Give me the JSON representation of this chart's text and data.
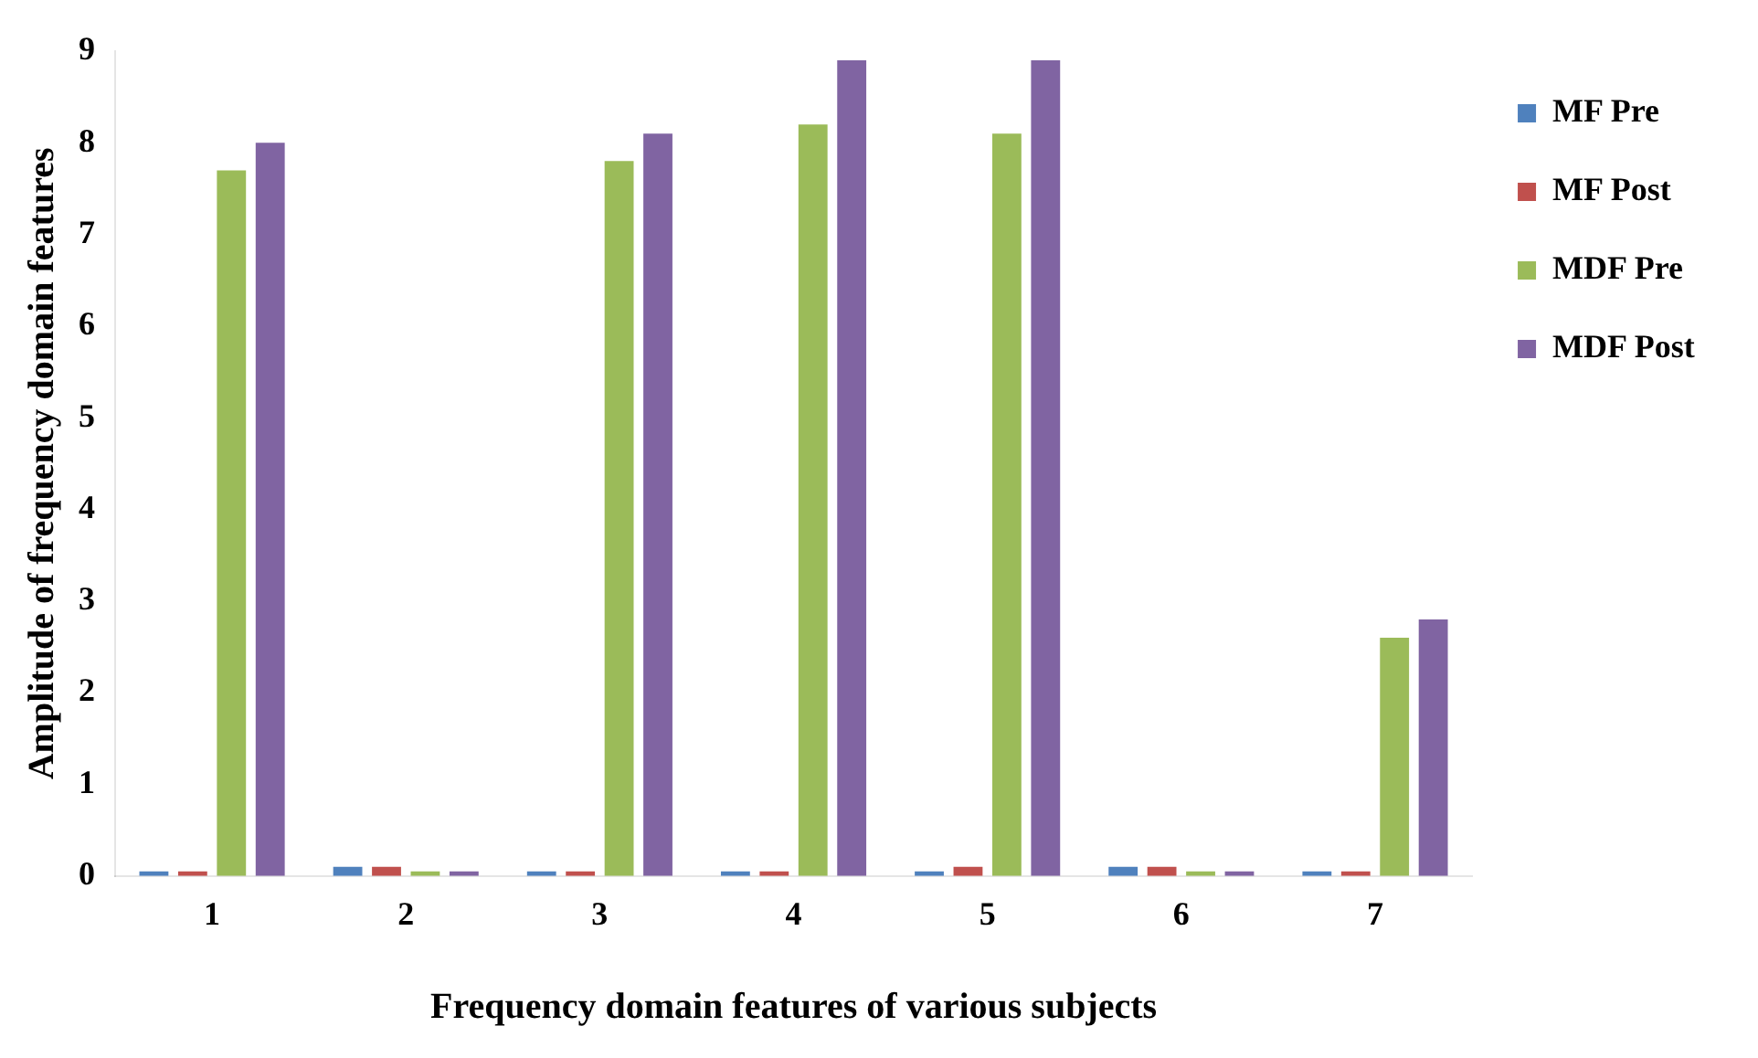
{
  "chart_data": {
    "type": "bar",
    "xlabel": "Frequency domain features of various subjects",
    "ylabel": "Amplitude of frequency domain features",
    "categories": [
      "1",
      "2",
      "3",
      "4",
      "5",
      "6",
      "7"
    ],
    "series": [
      {
        "name": "MF Pre",
        "color": "#4f81bd",
        "values": [
          0.05,
          0.1,
          0.05,
          0.05,
          0.05,
          0.1,
          0.05
        ]
      },
      {
        "name": "MF Post",
        "color": "#c0504d",
        "values": [
          0.05,
          0.1,
          0.05,
          0.05,
          0.1,
          0.1,
          0.05
        ]
      },
      {
        "name": "MDF Pre",
        "color": "#9bbb59",
        "values": [
          7.7,
          0.05,
          7.8,
          8.2,
          8.1,
          0.05,
          2.6
        ]
      },
      {
        "name": "MDF Post",
        "color": "#8064a2",
        "values": [
          8.0,
          0.05,
          8.1,
          8.9,
          8.9,
          0.05,
          2.8
        ]
      }
    ],
    "ylim": [
      0,
      9
    ],
    "yticks": [
      0,
      1,
      2,
      3,
      4,
      5,
      6,
      7,
      8,
      9
    ],
    "grid": false,
    "legend": "top right"
  }
}
